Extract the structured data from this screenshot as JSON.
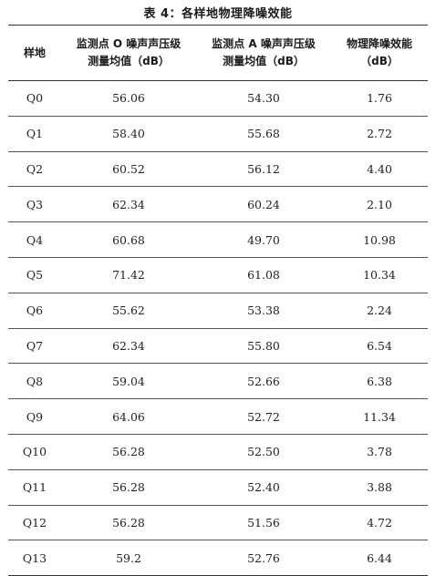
{
  "caption": "表 4：各样地物理降噪效能",
  "table": {
    "headers": [
      {
        "line1": "样地",
        "line2": ""
      },
      {
        "line1": "监测点 O 噪声声压级",
        "line2": "测量均值（dB）"
      },
      {
        "line1": "监测点 A 噪声声压级",
        "line2": "测量均值（dB）"
      },
      {
        "line1": "物理降噪效能",
        "line2": "（dB）"
      }
    ],
    "rows": [
      [
        "Q0",
        "56.06",
        "54.30",
        "1.76"
      ],
      [
        "Q1",
        "58.40",
        "55.68",
        "2.72"
      ],
      [
        "Q2",
        "60.52",
        "56.12",
        "4.40"
      ],
      [
        "Q3",
        "62.34",
        "60.24",
        "2.10"
      ],
      [
        "Q4",
        "60.68",
        "49.70",
        "10.98"
      ],
      [
        "Q5",
        "71.42",
        "61.08",
        "10.34"
      ],
      [
        "Q6",
        "55.62",
        "53.38",
        "2.24"
      ],
      [
        "Q7",
        "62.34",
        "55.80",
        "6.54"
      ],
      [
        "Q8",
        "59.04",
        "52.66",
        "6.38"
      ],
      [
        "Q9",
        "64.06",
        "52.72",
        "11.34"
      ],
      [
        "Q10",
        "56.28",
        "52.50",
        "3.78"
      ],
      [
        "Q11",
        "56.28",
        "52.40",
        "3.88"
      ],
      [
        "Q12",
        "56.28",
        "51.56",
        "4.72"
      ],
      [
        "Q13",
        "59.2",
        "52.76",
        "6.44"
      ]
    ]
  }
}
